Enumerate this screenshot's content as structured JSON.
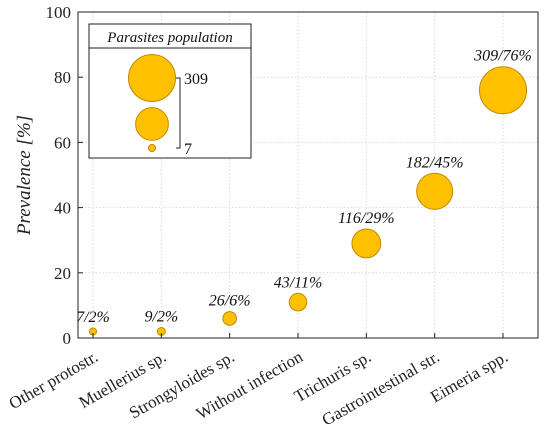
{
  "chart_data": {
    "type": "scatter",
    "categories": [
      "Other protostr.",
      "Muellerius sp.",
      "Strongyloides sp.",
      "Without infection",
      "Trichuris sp.",
      "Gastrointestinal str.",
      "Eimeria spp."
    ],
    "values": [
      2,
      2,
      6,
      11,
      29,
      45,
      76
    ],
    "sizes": [
      7,
      9,
      26,
      43,
      116,
      182,
      309
    ],
    "labels": [
      "7/2%",
      "9/2%",
      "26/6%",
      "43/11%",
      "116/29%",
      "182/45%",
      "309/76%"
    ],
    "ylabel": "Prevalence [%]",
    "ylim": [
      0,
      100
    ],
    "yticks": [
      0,
      20,
      40,
      60,
      80,
      100
    ],
    "grid": true,
    "legend": {
      "title": "Parasites population",
      "placement": "top-left",
      "max_label": "309",
      "min_label": "7",
      "sample_sizes": [
        309,
        150,
        7
      ]
    },
    "colors": {
      "fill": "#FFC000",
      "stroke": "#C08A00"
    }
  }
}
